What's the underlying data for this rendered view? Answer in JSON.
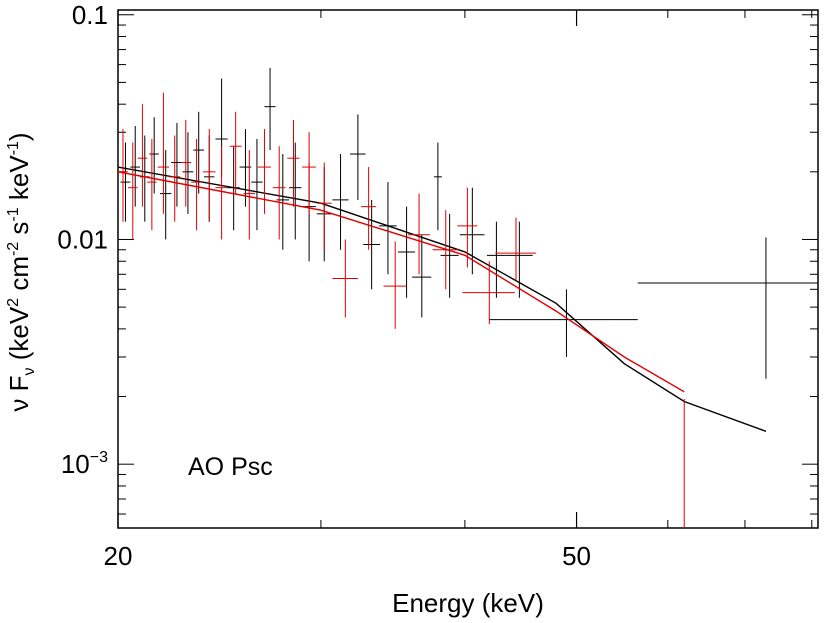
{
  "chart_data": {
    "type": "scatter",
    "title": "",
    "annotation": "AO Psc",
    "xlabel": "Energy (keV)",
    "ylabel": {
      "nu": "ν F",
      "nu_sub": "ν",
      "units_open": " (keV",
      "sup2": "2",
      "cm": " cm",
      "sup_neg2": "-2",
      "s": " s",
      "sup_neg1a": "-1",
      "kev": " keV",
      "sup_neg1b": "-1",
      "close": ")"
    },
    "x_scale": "log",
    "y_scale": "log",
    "xlim": [
      20,
      81
    ],
    "ylim": [
      0.00052,
      0.105
    ],
    "x_ticks": [
      {
        "value": 20,
        "label": "20"
      },
      {
        "value": 50,
        "label": "50"
      }
    ],
    "x_minor_ticks": [
      30,
      40,
      60,
      70,
      80
    ],
    "y_ticks": [
      {
        "value": 0.1,
        "label": "0.1",
        "base": "",
        "exp": ""
      },
      {
        "value": 0.01,
        "label": "0.01",
        "base": "",
        "exp": ""
      },
      {
        "value": 0.001,
        "label": "",
        "base": "10",
        "exp": "−3"
      }
    ],
    "series": [
      {
        "color": "#000000",
        "points": [
          {
            "x": 20.3,
            "y": 0.018,
            "xerr": 0.2,
            "ylo": 0.012,
            "yhi": 0.027
          },
          {
            "x": 20.7,
            "y": 0.021,
            "xerr": 0.2,
            "ylo": 0.014,
            "yhi": 0.032
          },
          {
            "x": 21.1,
            "y": 0.019,
            "xerr": 0.2,
            "ylo": 0.012,
            "yhi": 0.029
          },
          {
            "x": 21.5,
            "y": 0.024,
            "xerr": 0.2,
            "ylo": 0.016,
            "yhi": 0.035
          },
          {
            "x": 22.0,
            "y": 0.016,
            "xerr": 0.25,
            "ylo": 0.01,
            "yhi": 0.025
          },
          {
            "x": 22.5,
            "y": 0.022,
            "xerr": 0.25,
            "ylo": 0.014,
            "yhi": 0.033
          },
          {
            "x": 23.0,
            "y": 0.02,
            "xerr": 0.25,
            "ylo": 0.013,
            "yhi": 0.03
          },
          {
            "x": 23.5,
            "y": 0.025,
            "xerr": 0.25,
            "ylo": 0.016,
            "yhi": 0.037
          },
          {
            "x": 24.0,
            "y": 0.019,
            "xerr": 0.25,
            "ylo": 0.012,
            "yhi": 0.029
          },
          {
            "x": 24.6,
            "y": 0.028,
            "xerr": 0.3,
            "ylo": 0.019,
            "yhi": 0.052
          },
          {
            "x": 25.2,
            "y": 0.017,
            "xerr": 0.3,
            "ylo": 0.011,
            "yhi": 0.026
          },
          {
            "x": 25.8,
            "y": 0.021,
            "xerr": 0.3,
            "ylo": 0.014,
            "yhi": 0.031
          },
          {
            "x": 26.4,
            "y": 0.018,
            "xerr": 0.3,
            "ylo": 0.011,
            "yhi": 0.028
          },
          {
            "x": 27.1,
            "y": 0.039,
            "xerr": 0.3,
            "ylo": 0.025,
            "yhi": 0.058
          },
          {
            "x": 27.8,
            "y": 0.015,
            "xerr": 0.35,
            "ylo": 0.009,
            "yhi": 0.024
          },
          {
            "x": 28.5,
            "y": 0.017,
            "xerr": 0.35,
            "ylo": 0.01,
            "yhi": 0.027
          },
          {
            "x": 29.3,
            "y": 0.014,
            "xerr": 0.4,
            "ylo": 0.008,
            "yhi": 0.022
          },
          {
            "x": 30.2,
            "y": 0.013,
            "xerr": 0.45,
            "ylo": 0.008,
            "yhi": 0.021
          },
          {
            "x": 31.2,
            "y": 0.015,
            "xerr": 0.5,
            "ylo": 0.009,
            "yhi": 0.024
          },
          {
            "x": 32.3,
            "y": 0.024,
            "xerr": 0.5,
            "ylo": 0.015,
            "yhi": 0.036
          },
          {
            "x": 33.2,
            "y": 0.0095,
            "xerr": 0.55,
            "ylo": 0.006,
            "yhi": 0.015
          },
          {
            "x": 34.3,
            "y": 0.0115,
            "xerr": 0.6,
            "ylo": 0.007,
            "yhi": 0.018
          },
          {
            "x": 35.6,
            "y": 0.0088,
            "xerr": 0.6,
            "ylo": 0.0055,
            "yhi": 0.014
          },
          {
            "x": 36.7,
            "y": 0.0068,
            "xerr": 0.7,
            "ylo": 0.0045,
            "yhi": 0.0105
          },
          {
            "x": 37.9,
            "y": 0.019,
            "xerr": 0.3,
            "ylo": 0.011,
            "yhi": 0.027
          },
          {
            "x": 38.8,
            "y": 0.0085,
            "xerr": 0.7,
            "ylo": 0.0055,
            "yhi": 0.013
          },
          {
            "x": 40.6,
            "y": 0.0105,
            "xerr": 1.0,
            "ylo": 0.007,
            "yhi": 0.017
          },
          {
            "x": 42.6,
            "y": 0.0085,
            "xerr": 0.8,
            "ylo": 0.0055,
            "yhi": 0.012
          },
          {
            "x": 44.6,
            "y": 0.0085,
            "xerr": 1.2,
            "ylo": 0.0055,
            "yhi": 0.012
          },
          {
            "x": 49.0,
            "y": 0.0044,
            "xerr_lo": 7.0,
            "xerr_hi": 7.5,
            "ylo": 0.003,
            "yhi": 0.006
          },
          {
            "x": 73.0,
            "y": 0.0064,
            "xerr_lo": 16.5,
            "xerr_hi": 8.0,
            "ylo": 0.0024,
            "yhi": 0.0102
          }
        ],
        "model": [
          [
            20,
            0.021
          ],
          [
            30,
            0.0145
          ],
          [
            40,
            0.0088
          ],
          [
            48,
            0.0052
          ],
          [
            55,
            0.0028
          ],
          [
            62,
            0.0019
          ],
          [
            73,
            0.0014
          ]
        ]
      },
      {
        "color": "#e00000",
        "points": [
          {
            "x": 20.2,
            "y": 0.02,
            "xerr": 0.2,
            "ylo": 0.012,
            "yhi": 0.031
          },
          {
            "x": 20.6,
            "y": 0.017,
            "xerr": 0.2,
            "ylo": 0.01,
            "yhi": 0.027
          },
          {
            "x": 21.0,
            "y": 0.023,
            "xerr": 0.2,
            "ylo": 0.014,
            "yhi": 0.04
          },
          {
            "x": 21.4,
            "y": 0.018,
            "xerr": 0.2,
            "ylo": 0.011,
            "yhi": 0.028
          },
          {
            "x": 21.9,
            "y": 0.021,
            "xerr": 0.25,
            "ylo": 0.013,
            "yhi": 0.045
          },
          {
            "x": 22.4,
            "y": 0.019,
            "xerr": 0.25,
            "ylo": 0.012,
            "yhi": 0.029
          },
          {
            "x": 22.9,
            "y": 0.022,
            "xerr": 0.25,
            "ylo": 0.014,
            "yhi": 0.034
          },
          {
            "x": 23.4,
            "y": 0.018,
            "xerr": 0.25,
            "ylo": 0.011,
            "yhi": 0.028
          },
          {
            "x": 24.0,
            "y": 0.02,
            "xerr": 0.3,
            "ylo": 0.012,
            "yhi": 0.031
          },
          {
            "x": 24.6,
            "y": 0.017,
            "xerr": 0.3,
            "ylo": 0.01,
            "yhi": 0.026
          },
          {
            "x": 25.3,
            "y": 0.026,
            "xerr": 0.3,
            "ylo": 0.016,
            "yhi": 0.037
          },
          {
            "x": 26.0,
            "y": 0.016,
            "xerr": 0.3,
            "ylo": 0.01,
            "yhi": 0.025
          },
          {
            "x": 26.8,
            "y": 0.021,
            "xerr": 0.35,
            "ylo": 0.013,
            "yhi": 0.031
          },
          {
            "x": 27.6,
            "y": 0.017,
            "xerr": 0.35,
            "ylo": 0.01,
            "yhi": 0.026
          },
          {
            "x": 28.4,
            "y": 0.023,
            "xerr": 0.35,
            "ylo": 0.014,
            "yhi": 0.034
          },
          {
            "x": 29.3,
            "y": 0.021,
            "xerr": 0.4,
            "ylo": 0.013,
            "yhi": 0.03
          },
          {
            "x": 30.2,
            "y": 0.0145,
            "xerr": 0.45,
            "ylo": 0.009,
            "yhi": 0.022
          },
          {
            "x": 31.5,
            "y": 0.0067,
            "xerr": 0.8,
            "ylo": 0.0045,
            "yhi": 0.01
          },
          {
            "x": 33.0,
            "y": 0.014,
            "xerr": 0.5,
            "ylo": 0.009,
            "yhi": 0.021
          },
          {
            "x": 34.8,
            "y": 0.0062,
            "xerr": 0.8,
            "ylo": 0.004,
            "yhi": 0.0098
          },
          {
            "x": 36.5,
            "y": 0.0105,
            "xerr": 0.8,
            "ylo": 0.007,
            "yhi": 0.016
          },
          {
            "x": 38.5,
            "y": 0.009,
            "xerr": 1.0,
            "ylo": 0.006,
            "yhi": 0.0135
          },
          {
            "x": 40.2,
            "y": 0.0115,
            "xerr": 0.8,
            "ylo": 0.0075,
            "yhi": 0.017
          },
          {
            "x": 42.0,
            "y": 0.0058,
            "xerr": 2.2,
            "ylo": 0.0042,
            "yhi": 0.008
          },
          {
            "x": 44.3,
            "y": 0.0087,
            "xerr": 1.8,
            "ylo": 0.0066,
            "yhi": 0.0125
          },
          {
            "x": 62.0,
            "y": 0.00195,
            "xerr": 0.0,
            "ylo": 0.00052,
            "yhi": 0.00195
          }
        ],
        "model": [
          [
            20,
            0.02
          ],
          [
            30,
            0.0135
          ],
          [
            40,
            0.0085
          ],
          [
            48,
            0.0048
          ],
          [
            55,
            0.003
          ],
          [
            62,
            0.0021
          ]
        ]
      }
    ]
  }
}
